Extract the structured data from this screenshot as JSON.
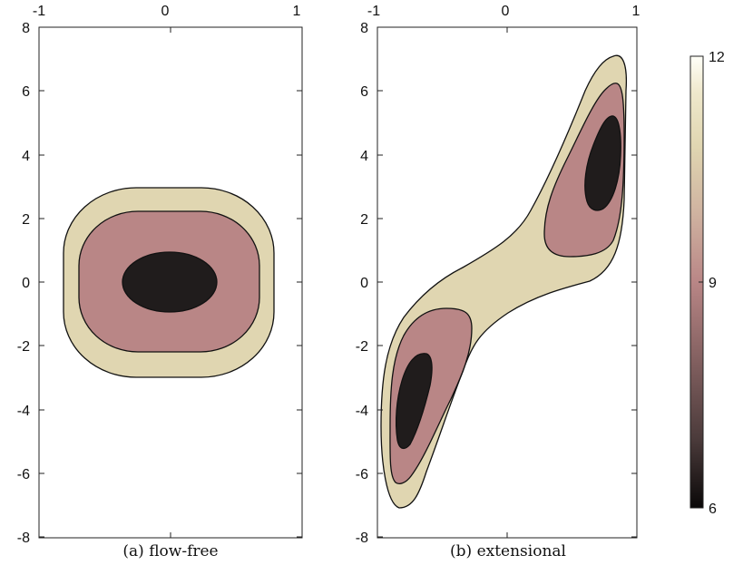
{
  "chart_data": [
    {
      "type": "contour",
      "caption": "(a) flow-free",
      "xlim": [
        -1,
        1
      ],
      "ylim": [
        -8,
        8
      ],
      "xticks": [
        "-1",
        "0",
        "1"
      ],
      "yticks": [
        "8",
        "6",
        "4",
        "2",
        "0",
        "-2",
        "-4",
        "-6",
        "-8"
      ],
      "x_axis_position": "top",
      "contour_levels": [
        {
          "level": 10.5,
          "color": "#e0d6b1",
          "region": {
            "cx": 0,
            "cy": 0,
            "rx": 0.62,
            "ry": 3.0
          }
        },
        {
          "level": 8.5,
          "color": "#b98686",
          "region": {
            "cx": 0,
            "cy": 0,
            "rx": 0.52,
            "ry": 2.2
          }
        },
        {
          "level": 7.0,
          "color": "#201c1c",
          "region": {
            "cx": 0,
            "cy": 0,
            "rx": 0.3,
            "ry": 0.95
          }
        }
      ]
    },
    {
      "type": "contour",
      "caption": "(b) extensional",
      "xlim": [
        -1,
        1
      ],
      "ylim": [
        -8,
        8
      ],
      "xticks": [
        "-1",
        "0",
        "1"
      ],
      "yticks": [
        "8",
        "6",
        "4",
        "2",
        "0",
        "-2",
        "-4",
        "-6",
        "-8"
      ],
      "x_axis_position": "top",
      "contour_levels": [
        {
          "level": 10.5,
          "color": "#e0d6b1",
          "region": "s-shaped band from (-0.75,-7.1) to (0.8,7.1)"
        },
        {
          "level": 8.5,
          "color": "#b98686",
          "region": "two lobes near (-0.6,-3.5) and (0.6,3.5)"
        },
        {
          "level": 7.0,
          "color": "#201c1c",
          "region": "two cores near (-0.7,-3.7) and (0.7,3.7)"
        }
      ]
    }
  ],
  "colorbar": {
    "ticks": [
      "12",
      "9",
      "6"
    ],
    "range": [
      6,
      12
    ],
    "colors": [
      "#0a0808",
      "#4a3a3a",
      "#8a6565",
      "#b98686",
      "#cfb2a0",
      "#e0d6b1",
      "#efe8cc",
      "#fffff8"
    ]
  }
}
